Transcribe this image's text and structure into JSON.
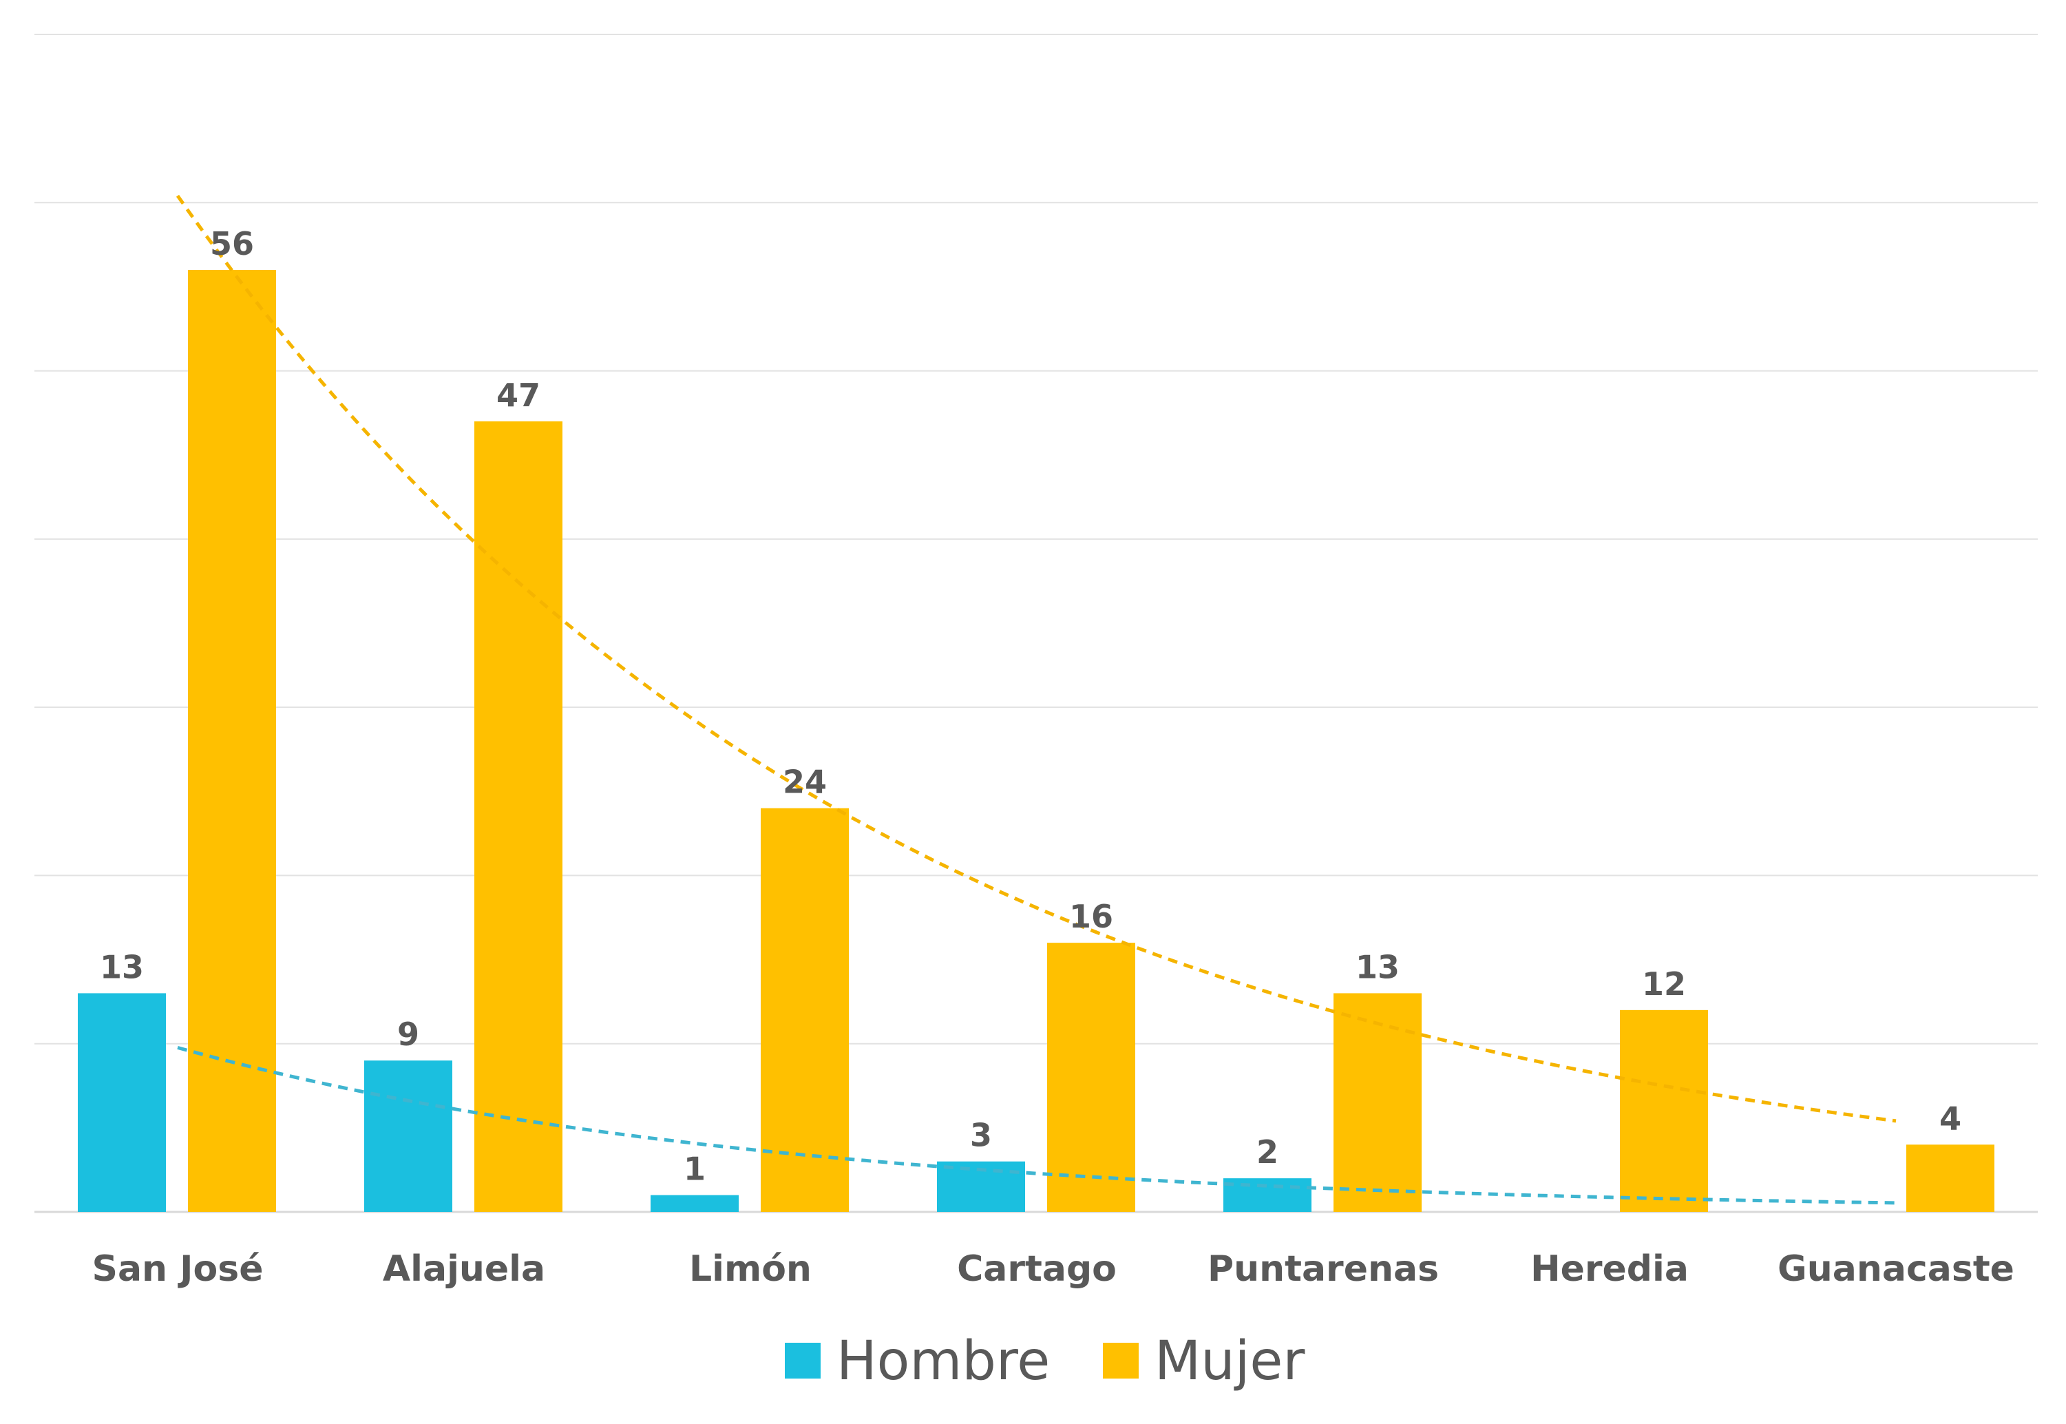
{
  "chart_data": {
    "type": "bar",
    "categories": [
      "San José",
      "Alajuela",
      "Limón",
      "Cartago",
      "Puntarenas",
      "Heredia",
      "Guanacaste"
    ],
    "series": [
      {
        "name": "Hombre",
        "values": [
          13,
          9,
          1,
          3,
          2,
          null,
          null
        ],
        "color": "#1bbfdf",
        "labels": [
          "13",
          "9",
          "1",
          "3",
          "2",
          "",
          ""
        ]
      },
      {
        "name": "Mujer",
        "values": [
          56,
          47,
          24,
          16,
          13,
          12,
          4
        ],
        "color": "#ffc000",
        "labels": [
          "56",
          "47",
          "24",
          "16",
          "13",
          "12",
          "4"
        ]
      }
    ],
    "trendlines": [
      {
        "series": "Hombre",
        "type": "exponential",
        "style": "dashed",
        "color": "#3fb5d0"
      },
      {
        "series": "Mujer",
        "type": "exponential",
        "style": "dashed",
        "color": "#f5b400"
      }
    ],
    "ylim": [
      0,
      70
    ],
    "ygrid_step": 10,
    "grid": true,
    "legend_position": "bottom",
    "title": "",
    "xlabel": "",
    "ylabel": ""
  }
}
